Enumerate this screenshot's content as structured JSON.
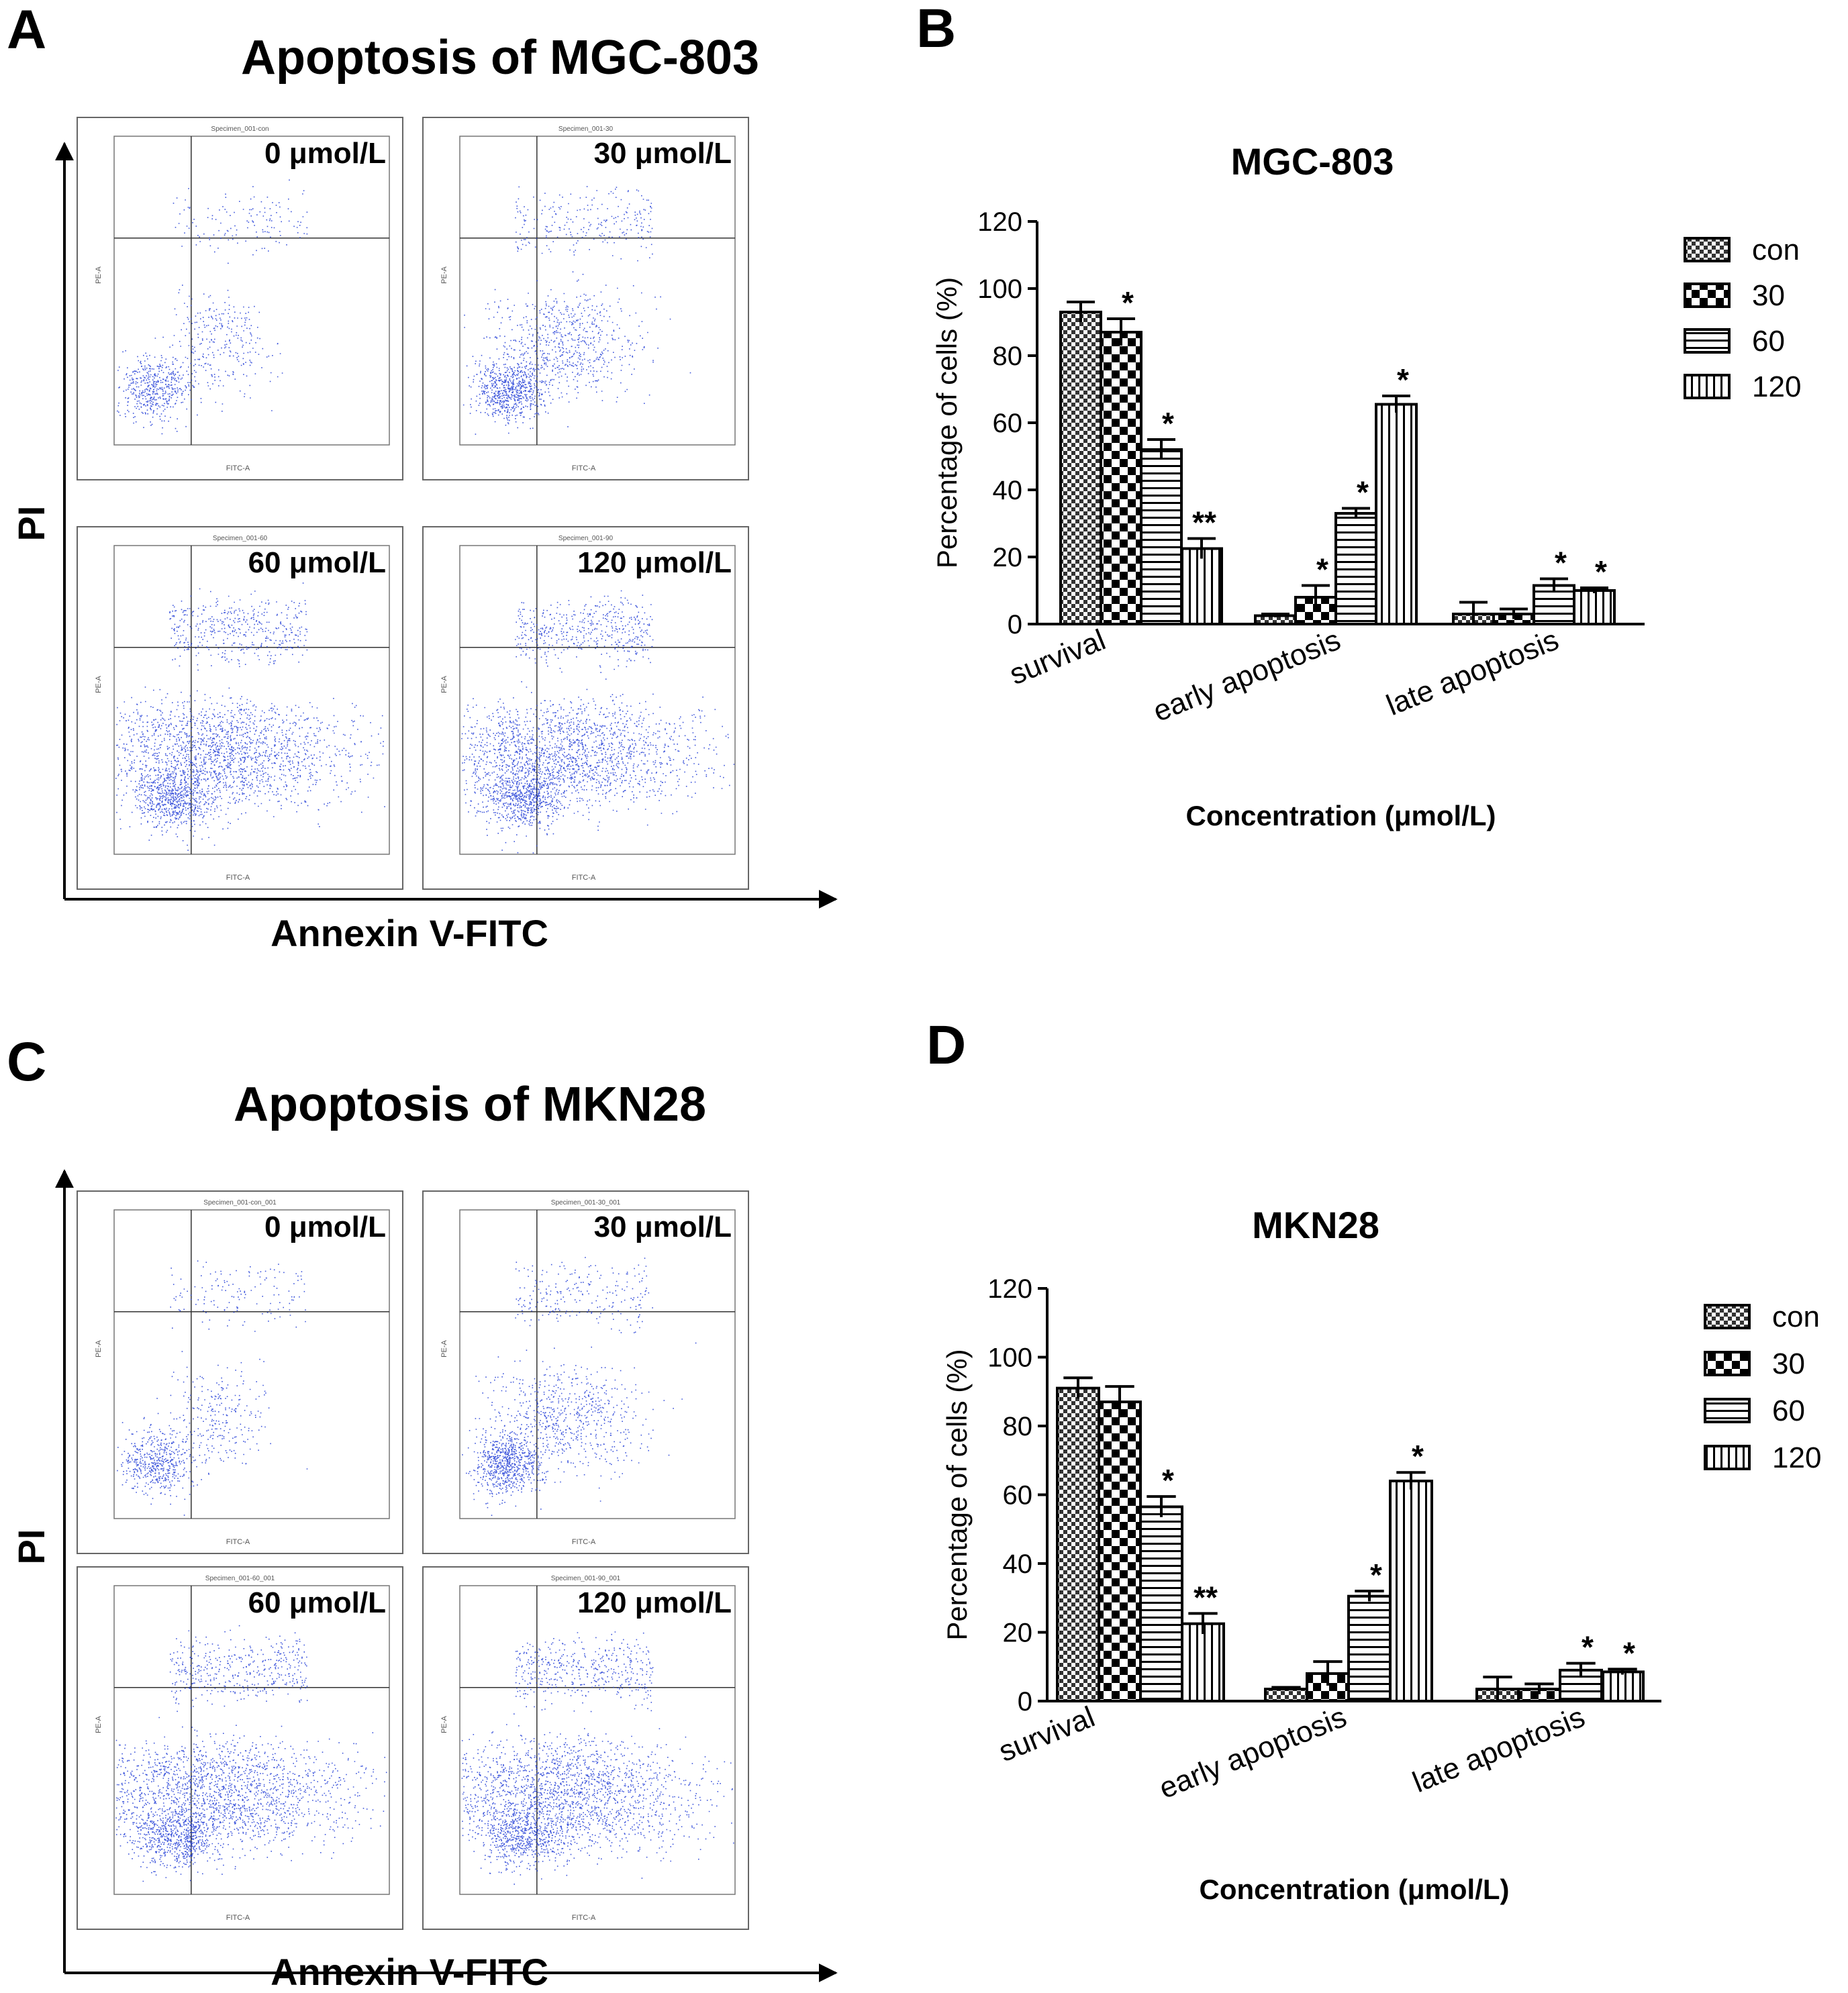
{
  "panels": {
    "A": {
      "letter": "A",
      "title": "Apoptosis of MGC-803",
      "y_label": "PI",
      "x_label": "Annexin V-FITC"
    },
    "B": {
      "letter": "B"
    },
    "C": {
      "letter": "C",
      "title": "Apoptosis of MKN28",
      "y_label": "PI",
      "x_label": "Annexin V-FITC"
    },
    "D": {
      "letter": "D"
    }
  },
  "flow_plots": {
    "A": [
      {
        "specimen": "Specimen_001-con",
        "conc": "0 μmol/L",
        "axis_x": "FITC-A",
        "axis_y": "PE-A"
      },
      {
        "specimen": "Specimen_001-30",
        "conc": "30 μmol/L",
        "axis_x": "FITC-A",
        "axis_y": "PE-A"
      },
      {
        "specimen": "Specimen_001-60",
        "conc": "60 μmol/L",
        "axis_x": "FITC-A",
        "axis_y": "PE-A"
      },
      {
        "specimen": "Specimen_001-90",
        "conc": "120 μmol/L",
        "axis_x": "FITC-A",
        "axis_y": "PE-A"
      }
    ],
    "C": [
      {
        "specimen": "Specimen_001-con_001",
        "conc": "0 μmol/L",
        "axis_x": "FITC-A",
        "axis_y": "PE-A"
      },
      {
        "specimen": "Specimen_001-30_001",
        "conc": "30 μmol/L",
        "axis_x": "FITC-A",
        "axis_y": "PE-A"
      },
      {
        "specimen": "Specimen_001-60_001",
        "conc": "60 μmol/L",
        "axis_x": "FITC-A",
        "axis_y": "PE-A"
      },
      {
        "specimen": "Specimen_001-90_001",
        "conc": "120 μmol/L",
        "axis_x": "FITC-A",
        "axis_y": "PE-A"
      }
    ]
  },
  "chart_data": [
    {
      "type": "bar",
      "title": "MGC-803",
      "xlabel": "Concentration (μmol/L)",
      "ylabel": "Percentage of cells (%)",
      "ylim": [
        0,
        120
      ],
      "yticks": [
        0,
        20,
        40,
        60,
        80,
        100,
        120
      ],
      "categories": [
        "survival",
        "early apoptosis",
        "late apoptosis"
      ],
      "legend_position": "right",
      "series": [
        {
          "name": "con",
          "values": [
            93,
            2.5,
            3
          ],
          "errors": [
            3,
            0.5,
            3.5
          ],
          "marks": [
            "",
            "",
            ""
          ]
        },
        {
          "name": "30",
          "values": [
            87,
            8,
            3
          ],
          "errors": [
            4,
            3.5,
            1.5
          ],
          "marks": [
            "*",
            "*",
            ""
          ]
        },
        {
          "name": "60",
          "values": [
            52,
            33,
            11.5
          ],
          "errors": [
            3,
            1.5,
            2
          ],
          "marks": [
            "*",
            "*",
            "*"
          ]
        },
        {
          "name": "120",
          "values": [
            22.5,
            65.5,
            10
          ],
          "errors": [
            3,
            2.5,
            0.8
          ],
          "marks": [
            "**",
            "*",
            "*"
          ]
        }
      ]
    },
    {
      "type": "bar",
      "title": "MKN28",
      "xlabel": "Concentration (μmol/L)",
      "ylabel": "Percentage of cells (%)",
      "ylim": [
        0,
        120
      ],
      "yticks": [
        0,
        20,
        40,
        60,
        80,
        100,
        120
      ],
      "categories": [
        "survival",
        "early apoptosis",
        "late apoptosis"
      ],
      "legend_position": "right",
      "series": [
        {
          "name": "con",
          "values": [
            91,
            3.5,
            3.5
          ],
          "errors": [
            3,
            0.5,
            3.5
          ],
          "marks": [
            "",
            "",
            ""
          ]
        },
        {
          "name": "30",
          "values": [
            87,
            8,
            3.5
          ],
          "errors": [
            4.5,
            3.5,
            1.5
          ],
          "marks": [
            "",
            "",
            ""
          ]
        },
        {
          "name": "60",
          "values": [
            56.5,
            30.5,
            9
          ],
          "errors": [
            3,
            1.5,
            2
          ],
          "marks": [
            "*",
            "*",
            "*"
          ]
        },
        {
          "name": "120",
          "values": [
            22.5,
            64,
            8.5
          ],
          "errors": [
            3,
            2.5,
            0.8
          ],
          "marks": [
            "**",
            "*",
            "*"
          ]
        }
      ]
    }
  ]
}
